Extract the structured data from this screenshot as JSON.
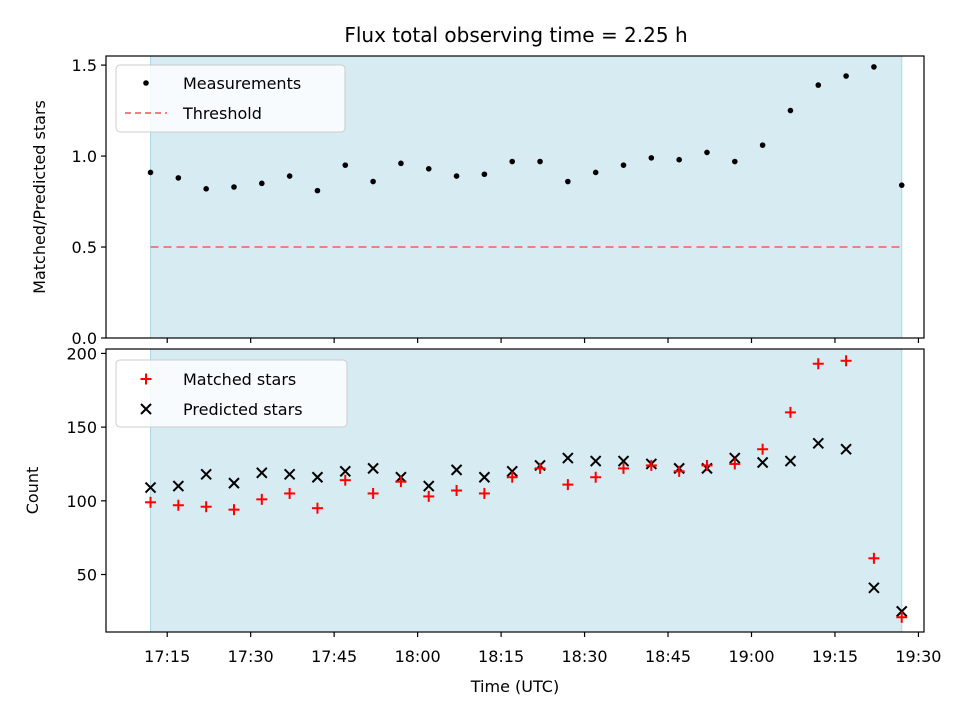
{
  "title": "Flux total observing time = 2.25 h",
  "chart_data": [
    {
      "type": "scatter",
      "panel": "top",
      "ylabel": "Matched/Predicted stars",
      "ylim": [
        0,
        1.55
      ],
      "yticks": [
        0.0,
        0.5,
        1.0,
        1.5
      ],
      "ytick_labels": [
        "0.0",
        "0.5",
        "1.0",
        "1.5"
      ],
      "shaded_interval": [
        "17:12",
        "19:27"
      ],
      "legend": {
        "position": "upper left",
        "entries": [
          "Measurements",
          "Threshold"
        ]
      },
      "threshold": {
        "name": "Threshold",
        "value": 0.5,
        "color": "#f08080",
        "style": "dashed"
      },
      "series": [
        {
          "name": "Measurements",
          "marker": "dot",
          "color": "#000000",
          "points": [
            [
              "17:12",
              0.91
            ],
            [
              "17:17",
              0.88
            ],
            [
              "17:22",
              0.82
            ],
            [
              "17:27",
              0.83
            ],
            [
              "17:32",
              0.85
            ],
            [
              "17:37",
              0.89
            ],
            [
              "17:42",
              0.81
            ],
            [
              "17:47",
              0.95
            ],
            [
              "17:52",
              0.86
            ],
            [
              "17:57",
              0.96
            ],
            [
              "18:02",
              0.93
            ],
            [
              "18:07",
              0.89
            ],
            [
              "18:12",
              0.9
            ],
            [
              "18:17",
              0.97
            ],
            [
              "18:22",
              0.97
            ],
            [
              "18:27",
              0.86
            ],
            [
              "18:32",
              0.91
            ],
            [
              "18:37",
              0.95
            ],
            [
              "18:42",
              0.99
            ],
            [
              "18:47",
              0.98
            ],
            [
              "18:52",
              1.02
            ],
            [
              "18:57",
              0.97
            ],
            [
              "19:02",
              1.06
            ],
            [
              "19:07",
              1.25
            ],
            [
              "19:12",
              1.39
            ],
            [
              "19:17",
              1.44
            ],
            [
              "19:22",
              1.49
            ],
            [
              "19:27",
              0.84
            ]
          ]
        }
      ]
    },
    {
      "type": "scatter",
      "panel": "bottom",
      "xlabel": "Time (UTC)",
      "ylabel": "Count",
      "ylim": [
        11,
        203
      ],
      "yticks": [
        50,
        100,
        150,
        200
      ],
      "ytick_labels": [
        "50",
        "100",
        "150",
        "200"
      ],
      "xlim": [
        "17:04",
        "19:31"
      ],
      "xticks": [
        "17:15",
        "17:30",
        "17:45",
        "18:00",
        "18:15",
        "18:30",
        "18:45",
        "19:00",
        "19:15",
        "19:30"
      ],
      "shaded_interval": [
        "17:12",
        "19:27"
      ],
      "legend": {
        "position": "upper left",
        "entries": [
          "Matched stars",
          "Predicted stars"
        ]
      },
      "series": [
        {
          "name": "Matched stars",
          "marker": "plus",
          "color": "#ff0000",
          "points": [
            [
              "17:12",
              99
            ],
            [
              "17:17",
              97
            ],
            [
              "17:22",
              96
            ],
            [
              "17:27",
              94
            ],
            [
              "17:32",
              101
            ],
            [
              "17:37",
              105
            ],
            [
              "17:42",
              95
            ],
            [
              "17:47",
              114
            ],
            [
              "17:52",
              105
            ],
            [
              "17:57",
              113
            ],
            [
              "18:02",
              103
            ],
            [
              "18:07",
              107
            ],
            [
              "18:12",
              105
            ],
            [
              "18:17",
              116
            ],
            [
              "18:22",
              122
            ],
            [
              "18:27",
              111
            ],
            [
              "18:32",
              116
            ],
            [
              "18:37",
              122
            ],
            [
              "18:42",
              124
            ],
            [
              "18:47",
              120
            ],
            [
              "18:52",
              124
            ],
            [
              "18:57",
              125
            ],
            [
              "19:02",
              135
            ],
            [
              "19:07",
              160
            ],
            [
              "19:12",
              193
            ],
            [
              "19:17",
              195
            ],
            [
              "19:22",
              61
            ],
            [
              "19:27",
              21
            ]
          ]
        },
        {
          "name": "Predicted stars",
          "marker": "x",
          "color": "#000000",
          "points": [
            [
              "17:12",
              109
            ],
            [
              "17:17",
              110
            ],
            [
              "17:22",
              118
            ],
            [
              "17:27",
              112
            ],
            [
              "17:32",
              119
            ],
            [
              "17:37",
              118
            ],
            [
              "17:42",
              116
            ],
            [
              "17:47",
              120
            ],
            [
              "17:52",
              122
            ],
            [
              "17:57",
              116
            ],
            [
              "18:02",
              110
            ],
            [
              "18:07",
              121
            ],
            [
              "18:12",
              116
            ],
            [
              "18:17",
              120
            ],
            [
              "18:22",
              124
            ],
            [
              "18:27",
              129
            ],
            [
              "18:32",
              127
            ],
            [
              "18:37",
              127
            ],
            [
              "18:42",
              125
            ],
            [
              "18:47",
              122
            ],
            [
              "18:52",
              122
            ],
            [
              "18:57",
              129
            ],
            [
              "19:02",
              126
            ],
            [
              "19:07",
              127
            ],
            [
              "19:12",
              139
            ],
            [
              "19:17",
              135
            ],
            [
              "19:22",
              41
            ],
            [
              "19:27",
              25
            ]
          ]
        }
      ]
    }
  ],
  "colors": {
    "shade": "#add8e6",
    "axes": "#000000",
    "legend_bg": "#ffffff",
    "legend_border": "#cccccc"
  }
}
